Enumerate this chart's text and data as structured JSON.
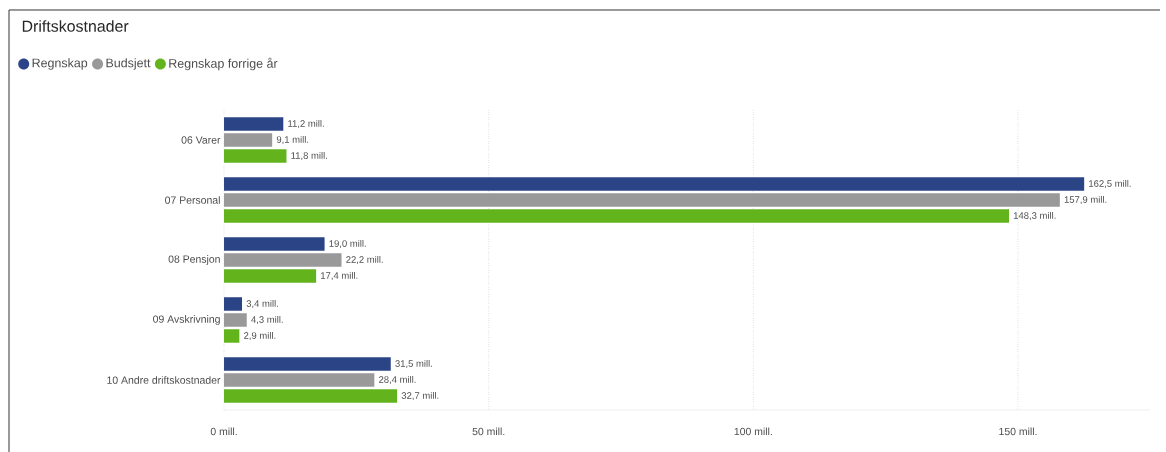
{
  "chart_data": {
    "type": "bar",
    "orientation": "horizontal",
    "title": "Driftskostnader",
    "categories": [
      "06 Varer",
      "07 Personal",
      "08 Pensjon",
      "09 Avskrivning",
      "10 Andre driftskostnader"
    ],
    "series": [
      {
        "name": "Regnskap",
        "color": "#2a4486",
        "values": [
          11.2,
          162.5,
          19.0,
          3.4,
          31.5
        ],
        "value_labels": [
          "11,2 mill.",
          "162,5 mill.",
          "19,0 mill.",
          "3,4 mill.",
          "31,5 mill."
        ]
      },
      {
        "name": "Budsjett",
        "color": "#999999",
        "values": [
          9.1,
          157.9,
          22.2,
          4.3,
          28.4
        ],
        "value_labels": [
          "9,1 mill.",
          "157,9 mill.",
          "22,2 mill.",
          "4,3 mill.",
          "28,4 mill."
        ]
      },
      {
        "name": "Regnskap forrige år",
        "color": "#63b31c",
        "values": [
          11.8,
          148.3,
          17.4,
          2.9,
          32.7
        ],
        "value_labels": [
          "11,8 mill.",
          "148,3 mill.",
          "17,4 mill.",
          "2,9 mill.",
          "32,7 mill."
        ]
      }
    ],
    "xlim": [
      0,
      175
    ],
    "xticks": [
      {
        "value": 0,
        "label": "0 mill."
      },
      {
        "value": 50,
        "label": "50 mill."
      },
      {
        "value": 100,
        "label": "100 mill."
      },
      {
        "value": 150,
        "label": "150 mill."
      }
    ],
    "grid": "x",
    "legend": "top left"
  }
}
